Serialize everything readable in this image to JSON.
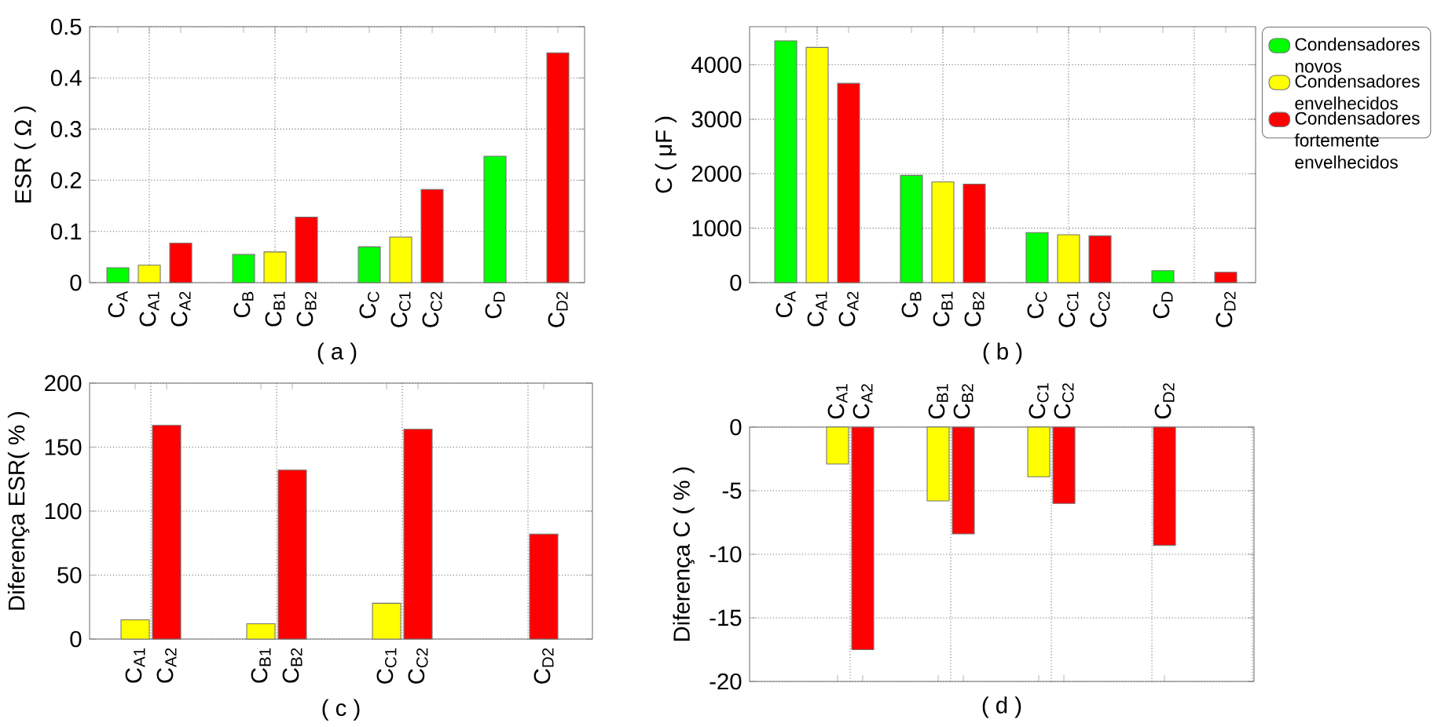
{
  "chart_data": [
    {
      "type": "bar",
      "xlabel": "( a )",
      "ylabel": "ESR ( Ω )",
      "grid": true,
      "categories": [
        "C$_{A}$",
        "C$_{A1}$",
        "C$_{A2}$",
        null,
        "C$_{B}$",
        "C$_{B1}$",
        "C$_{B2}$",
        null,
        "C$_{C}$",
        "C$_{C1}$",
        "C$_{C2}$",
        null,
        "C$_{D}$",
        null,
        "C$_{D2}$"
      ],
      "ylim": [
        0,
        0.5
      ],
      "yticks": [
        0,
        0.1,
        0.2,
        0.3,
        0.4,
        0.5
      ],
      "series": [
        {
          "color": "#00ff00",
          "values": [
            0.029,
            null,
            null,
            null,
            0.055,
            null,
            null,
            null,
            0.07,
            null,
            null,
            null,
            0.247,
            null,
            null
          ]
        },
        {
          "color": "#ffff00",
          "values": [
            null,
            0.034,
            null,
            null,
            null,
            0.06,
            null,
            null,
            null,
            0.089,
            null,
            null,
            null,
            null,
            null
          ]
        },
        {
          "color": "#ff0000",
          "values": [
            null,
            null,
            0.077,
            null,
            null,
            null,
            0.128,
            null,
            null,
            null,
            0.182,
            null,
            null,
            null,
            0.449
          ]
        }
      ]
    },
    {
      "type": "bar",
      "xlabel": "( b )",
      "ylabel": "C ( μF )",
      "grid": true,
      "legend": "right",
      "categories": [
        "C$_{A}$",
        "C$_{A1}$",
        "C$_{A2}$",
        null,
        "C$_{B}$",
        "C$_{B1}$",
        "C$_{B2}$",
        null,
        "C$_{C}$",
        "C$_{C1}$",
        "C$_{C2}$",
        null,
        "C$_{D}$",
        null,
        "C$_{D2}$"
      ],
      "ylim": [
        0,
        4700
      ],
      "yticks": [
        0,
        1000,
        2000,
        3000,
        4000
      ],
      "series": [
        {
          "name": "Condensadores novos",
          "color": "#00ff00",
          "values": [
            4440,
            null,
            null,
            null,
            1970,
            null,
            null,
            null,
            920,
            null,
            null,
            null,
            220,
            null,
            null
          ]
        },
        {
          "name": "Condensadores envelhecidos",
          "color": "#ffff00",
          "values": [
            null,
            4320,
            null,
            null,
            null,
            1850,
            null,
            null,
            null,
            880,
            null,
            null,
            null,
            null,
            null
          ]
        },
        {
          "name": "Condensadores fortemente envelhecidos",
          "color": "#ff0000",
          "values": [
            null,
            null,
            3660,
            null,
            null,
            null,
            1810,
            null,
            null,
            null,
            860,
            null,
            null,
            null,
            190
          ]
        }
      ]
    },
    {
      "type": "bar",
      "xlabel": "( c )",
      "ylabel": "Diferença ESR( % )",
      "grid": true,
      "categories": [
        "C$_{A1}$",
        "C$_{A2}$",
        null,
        null,
        "C$_{B1}$",
        "C$_{B2}$",
        null,
        null,
        "C$_{C1}$",
        "C$_{C2}$",
        null,
        null,
        null,
        "C$_{D2}$"
      ],
      "ylim": [
        0,
        200
      ],
      "yticks": [
        0,
        50,
        100,
        150,
        200
      ],
      "series": [
        {
          "color": "#ffff00",
          "values": [
            15,
            null,
            null,
            null,
            12,
            null,
            null,
            null,
            28,
            null,
            null,
            null,
            null,
            null
          ]
        },
        {
          "color": "#ff0000",
          "values": [
            null,
            167,
            null,
            null,
            null,
            132,
            null,
            null,
            null,
            164,
            null,
            null,
            null,
            82
          ]
        }
      ]
    },
    {
      "type": "bar",
      "xlabel": "( d )",
      "ylabel": "Diferença C ( % )",
      "grid": true,
      "categories": [
        "C$_{A1}$",
        "C$_{A2}$",
        null,
        null,
        "C$_{B1}$",
        "C$_{B2}$",
        null,
        null,
        "C$_{C1}$",
        "C$_{C2}$",
        null,
        null,
        null,
        "C$_{D2}$"
      ],
      "ylim": [
        -20,
        0
      ],
      "yticks": [
        -20,
        -15,
        -10,
        -5,
        0
      ],
      "series": [
        {
          "color": "#ffff00",
          "values": [
            -2.9,
            null,
            null,
            null,
            -5.8,
            null,
            null,
            null,
            -3.9,
            null,
            null,
            null,
            null,
            null
          ]
        },
        {
          "color": "#ff0000",
          "values": [
            null,
            -17.5,
            null,
            null,
            null,
            -8.4,
            null,
            null,
            null,
            -6,
            null,
            null,
            null,
            -9.3
          ]
        }
      ]
    }
  ]
}
